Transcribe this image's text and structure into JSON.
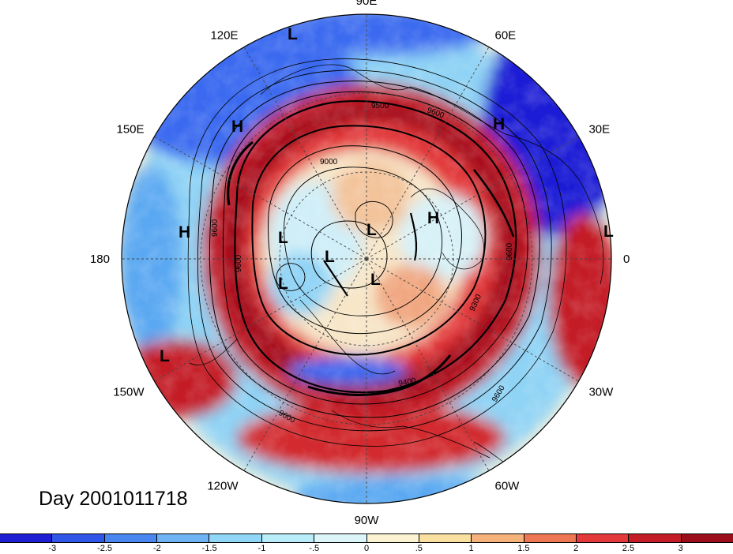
{
  "title": "Day 2001011718",
  "projection": "polar-stereographic-north",
  "longitude_labels": [
    {
      "key": "lon_90e",
      "text": "90E",
      "lon": 90
    },
    {
      "key": "lon_60e",
      "text": "60E",
      "lon": 60
    },
    {
      "key": "lon_30e",
      "text": "30E",
      "lon": 30
    },
    {
      "key": "lon_0",
      "text": "0",
      "lon": 0
    },
    {
      "key": "lon_30w",
      "text": "30W",
      "lon": -30
    },
    {
      "key": "lon_60w",
      "text": "60W",
      "lon": -60
    },
    {
      "key": "lon_90w",
      "text": "90W",
      "lon": -90
    },
    {
      "key": "lon_120w",
      "text": "120W",
      "lon": -120
    },
    {
      "key": "lon_150w",
      "text": "150W",
      "lon": -150
    },
    {
      "key": "lon_180",
      "text": "180",
      "lon": 180
    },
    {
      "key": "lon_150e",
      "text": "150E",
      "lon": 150
    },
    {
      "key": "lon_120e",
      "text": "120E",
      "lon": 120
    }
  ],
  "pressure_systems": [
    {
      "type": "L",
      "label": "L",
      "name": "low-north-pole-edge"
    },
    {
      "type": "H",
      "label": "H",
      "name": "high-east-asia"
    },
    {
      "type": "H",
      "label": "H",
      "name": "high-europe"
    },
    {
      "type": "H",
      "label": "H",
      "name": "high-north-pacific"
    },
    {
      "type": "H",
      "label": "H",
      "name": "high-arctic"
    },
    {
      "type": "L",
      "label": "L",
      "name": "low-east-siberia"
    },
    {
      "type": "L",
      "label": "L",
      "name": "low-arctic-center"
    },
    {
      "type": "L",
      "label": "L",
      "name": "low-beaufort"
    },
    {
      "type": "L",
      "label": "L",
      "name": "low-alaska"
    },
    {
      "type": "L",
      "label": "L",
      "name": "low-canada"
    },
    {
      "type": "L",
      "label": "L",
      "name": "low-gulf-of-alaska"
    },
    {
      "type": "L",
      "label": "L",
      "name": "low-west-africa"
    }
  ],
  "contour_labels": [
    {
      "key": "c9500",
      "text": "9500"
    },
    {
      "key": "c9600a",
      "text": "9600"
    },
    {
      "key": "c9000",
      "text": "9000"
    },
    {
      "key": "c9600b",
      "text": "9600"
    },
    {
      "key": "c9300",
      "text": "9300"
    },
    {
      "key": "c9400",
      "text": "9400"
    },
    {
      "key": "c9600c",
      "text": "9600"
    },
    {
      "key": "c9600d",
      "text": "9600"
    },
    {
      "key": "c9600e",
      "text": "9600"
    },
    {
      "key": "c9600f",
      "text": "9600"
    }
  ],
  "colors": {
    "deep_blue": "#1a1fd6",
    "blue": "#3a6bf0",
    "light_blue": "#8fd3f5",
    "pale": "#f7f2dc",
    "orange": "#f2a66a",
    "red": "#e32f2f",
    "dark_red": "#a3101c"
  },
  "colorbar": {
    "labels": [
      "-3",
      "-2.5",
      "-2",
      "-1.5",
      "-1",
      "-.5",
      "0",
      ".5",
      "1",
      "1.5",
      "2",
      "2.5",
      "3"
    ],
    "colors": [
      "#1e1ed2",
      "#2f56e8",
      "#4a86ef",
      "#6fb3f4",
      "#8fd6f7",
      "#b7ecf8",
      "#dbf5f9",
      "#fbf3d2",
      "#f9dfa0",
      "#f5b27a",
      "#ee7753",
      "#e3393a",
      "#c41d28",
      "#9c0d1c"
    ]
  }
}
